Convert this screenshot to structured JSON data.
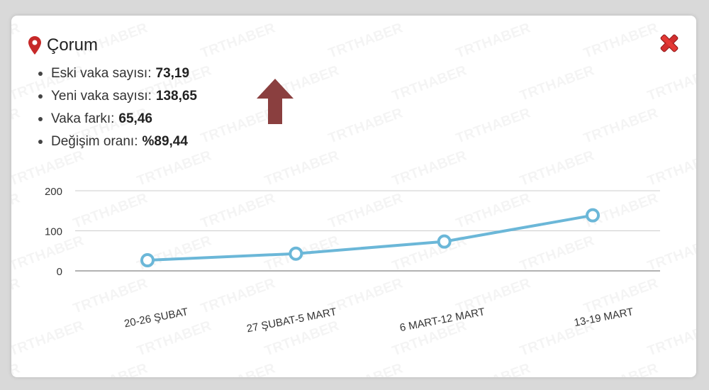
{
  "popup": {
    "city": "Çorum",
    "stats": [
      {
        "label": "Eski vaka sayısı:",
        "value": "73,19"
      },
      {
        "label": "Yeni vaka sayısı:",
        "value": "138,65"
      },
      {
        "label": "Vaka farkı:",
        "value": "65,46"
      },
      {
        "label": "Değişim oranı:",
        "value": "%89,44"
      }
    ],
    "trend": "up",
    "watermark": "TRTHABER"
  },
  "colors": {
    "pin": "#c62828",
    "arrow": "#8a3f3f",
    "close": "#d32f2f",
    "line": "#6bb7d8",
    "grid": "#cccccc",
    "axis": "#999999",
    "text": "#333333"
  },
  "chart_data": {
    "type": "line",
    "categories": [
      "20-26 ŞUBAT",
      "27 ŞUBAT-5 MART",
      "6 MART-12 MART",
      "13-19 MART"
    ],
    "values": [
      26.5,
      43,
      73.19,
      138.65
    ],
    "yticks": [
      "0",
      "100",
      "200"
    ],
    "ylim": [
      0,
      200
    ],
    "grid": true,
    "legend": "none"
  }
}
